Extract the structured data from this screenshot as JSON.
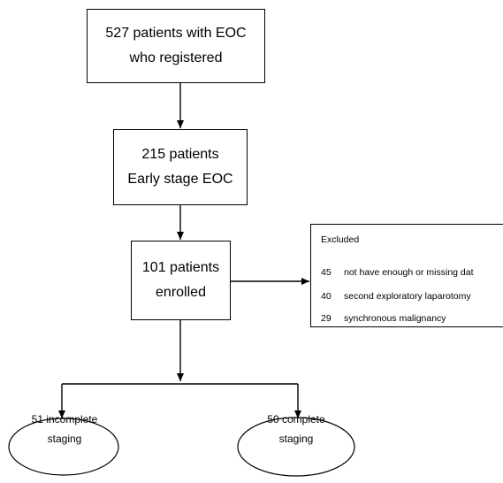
{
  "boxes": {
    "registered": {
      "line1": "527 patients with EOC",
      "line2": "who registered"
    },
    "early_stage": {
      "line1": "215 patients",
      "line2": "Early stage EOC"
    },
    "enrolled": {
      "line1": "101 patients",
      "line2": "enrolled"
    }
  },
  "excluded": {
    "title": "Excluded",
    "items": [
      {
        "count": "45",
        "reason": "not have enough or missing dat"
      },
      {
        "count": "40",
        "reason": "second exploratory laparotomy"
      },
      {
        "count": "29",
        "reason": "synchronous malignancy"
      }
    ]
  },
  "outcomes": {
    "incomplete": {
      "line1": "51 incomplete",
      "line2": "staging"
    },
    "complete": {
      "line1": "50 complete",
      "line2": "staging"
    }
  },
  "colors": {
    "line": "#000000",
    "background": "#ffffff"
  }
}
